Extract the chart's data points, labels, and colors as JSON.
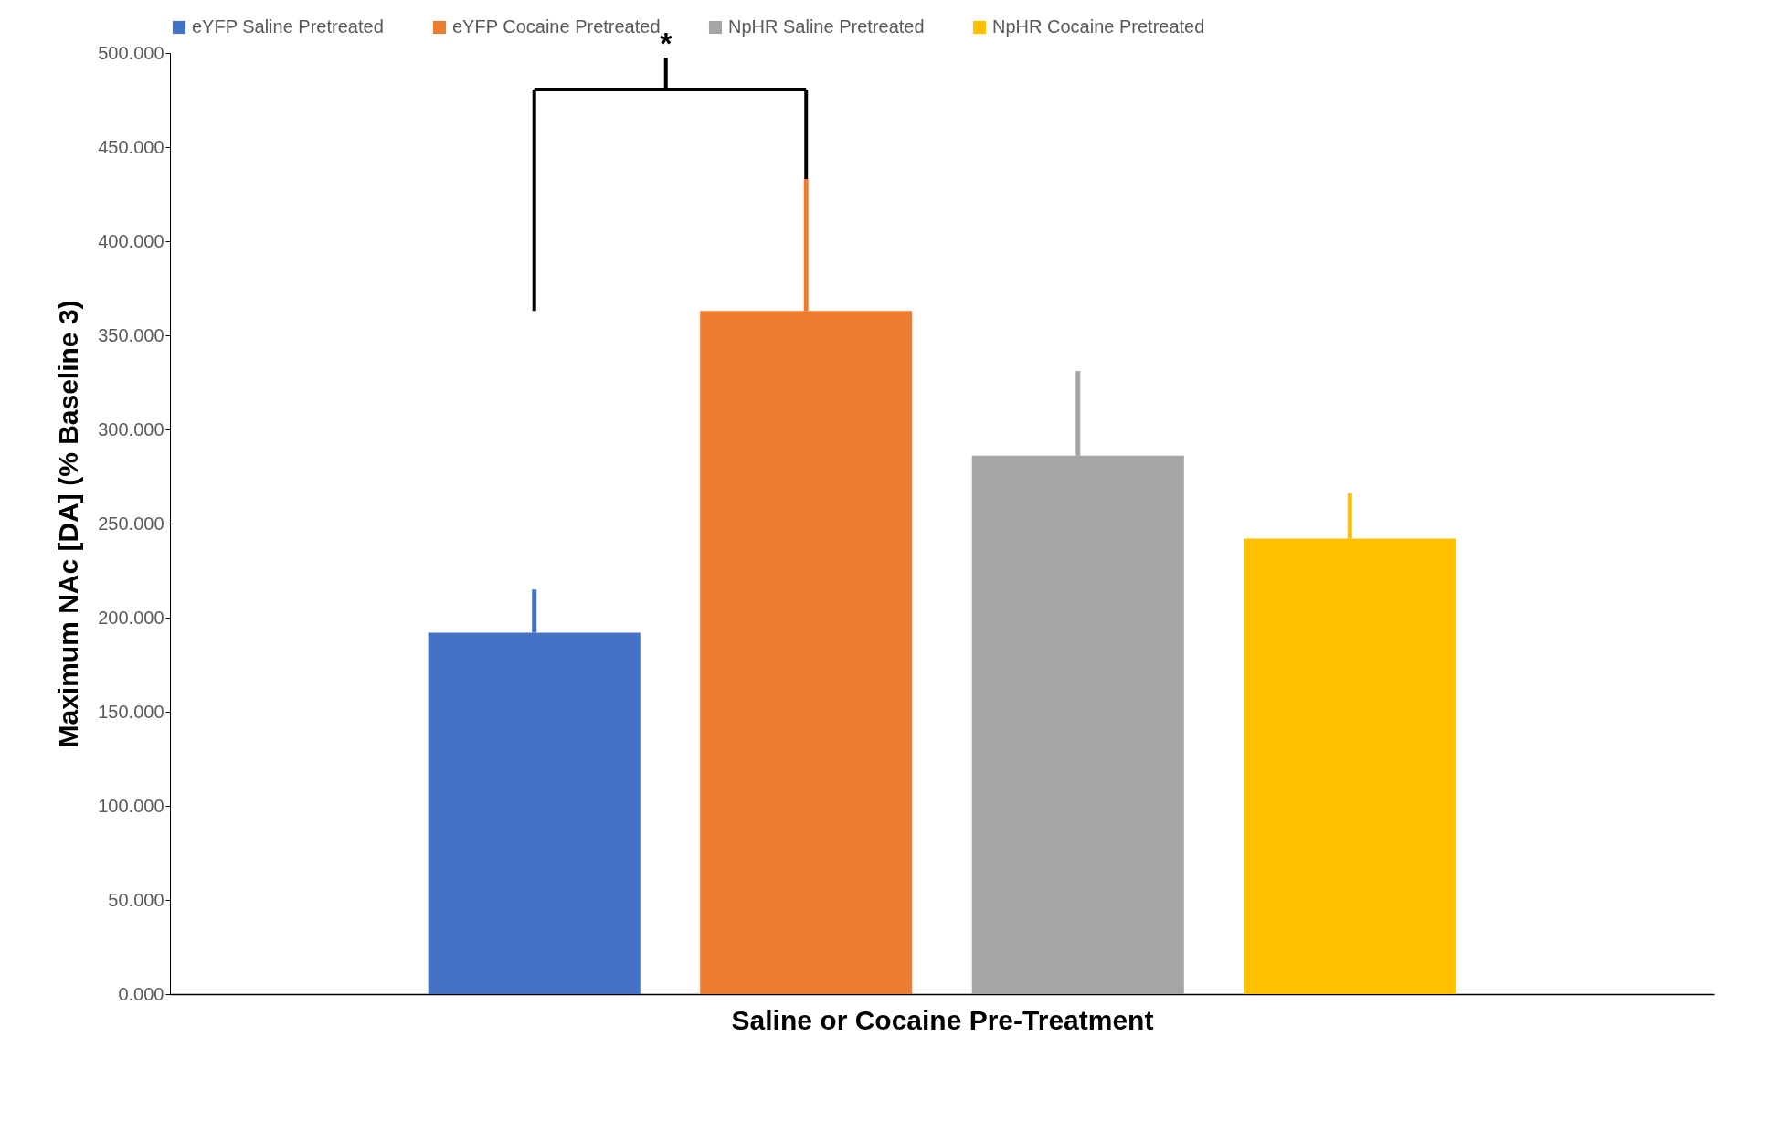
{
  "chart_data": {
    "type": "bar",
    "xlabel": "Saline or Cocaine Pre-Treatment",
    "ylabel": "Maximum NAc [DA] (% Baseline 3)",
    "categories": [
      null
    ],
    "series": [
      {
        "name": "eYFP Saline Pretreated",
        "color": "#4472c4",
        "values": [
          192
        ],
        "errors": [
          [
            192,
            215
          ]
        ]
      },
      {
        "name": "eYFP Cocaine Pretreated",
        "color": "#ed7d31",
        "values": [
          363
        ],
        "errors": [
          [
            363,
            433
          ]
        ]
      },
      {
        "name": "NpHR Saline Pretreated",
        "color": "#a5a5a5",
        "values": [
          286
        ],
        "errors": [
          [
            286,
            331
          ]
        ]
      },
      {
        "name": "NpHR Cocaine Pretreated",
        "color": "#ffc000",
        "values": [
          242
        ],
        "errors": [
          [
            242,
            266
          ]
        ]
      }
    ],
    "ylim": [
      0,
      500
    ],
    "yticks": [
      {
        "value": 0,
        "label": "0.000"
      },
      {
        "value": 50,
        "label": "50.000"
      },
      {
        "value": 100,
        "label": "100.000"
      },
      {
        "value": 150,
        "label": "150.000"
      },
      {
        "value": 200,
        "label": "200.000"
      },
      {
        "value": 250,
        "label": "250.000"
      },
      {
        "value": 300,
        "label": "300.000"
      },
      {
        "value": 350,
        "label": "350.000"
      },
      {
        "value": 400,
        "label": "400.000"
      },
      {
        "value": 450,
        "label": "450.000"
      },
      {
        "value": 500,
        "label": "500.000"
      }
    ],
    "annotations": [
      "*"
    ],
    "grid": false,
    "legend": "top",
    "tick_labels": "y"
  }
}
